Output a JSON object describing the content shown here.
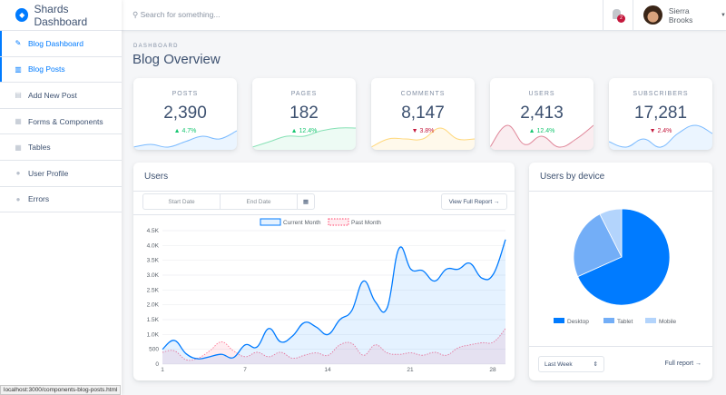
{
  "app": {
    "title": "Shards Dashboard"
  },
  "sidebar": {
    "items": [
      {
        "label": "Blog Dashboard",
        "icon": "pencil-icon",
        "active": true
      },
      {
        "label": "Blog Posts",
        "icon": "columns-icon"
      },
      {
        "label": "Add New Post",
        "icon": "note-add-icon"
      },
      {
        "label": "Forms & Components",
        "icon": "view-module-icon"
      },
      {
        "label": "Tables",
        "icon": "table-icon"
      },
      {
        "label": "User Profile",
        "icon": "person-icon"
      },
      {
        "label": "Errors",
        "icon": "error-icon"
      }
    ]
  },
  "header": {
    "search_placeholder": "Search for something...",
    "notifications": "2",
    "user": "Sierra Brooks"
  },
  "page": {
    "subtitle": "DASHBOARD",
    "title": "Blog Overview"
  },
  "stats": [
    {
      "label": "POSTS",
      "value": "2,390",
      "change": "4.7%",
      "dir": "up",
      "color": "#007bff",
      "spark": [
        1,
        2,
        1,
        3,
        5,
        4,
        7
      ]
    },
    {
      "label": "PAGES",
      "value": "182",
      "change": "12.4%",
      "dir": "up",
      "color": "#17c671",
      "spark": [
        1,
        3,
        5,
        5,
        7,
        8,
        8
      ]
    },
    {
      "label": "COMMENTS",
      "value": "8,147",
      "change": "3.8%",
      "dir": "down",
      "color": "#ffb400",
      "spark": [
        1,
        4,
        4,
        4,
        8,
        4,
        4
      ]
    },
    {
      "label": "USERS",
      "value": "2,413",
      "change": "12.4%",
      "dir": "up",
      "color": "#c4183c",
      "spark": [
        1,
        9,
        2,
        5,
        1,
        4,
        9
      ]
    },
    {
      "label": "SUBSCRIBERS",
      "value": "17,281",
      "change": "2.4%",
      "dir": "down",
      "color": "#007bff",
      "spark": [
        3,
        1,
        4,
        1,
        6,
        9,
        6
      ]
    }
  ],
  "users_card": {
    "title": "Users",
    "start_placeholder": "Start Date",
    "end_placeholder": "End Date",
    "report_button": "View Full Report →"
  },
  "chart_data": {
    "type": "line",
    "legend": [
      "Current Month",
      "Past Month"
    ],
    "legend_position": "top",
    "x_ticks": [
      "1",
      "7",
      "14",
      "21",
      "28"
    ],
    "y_ticks": [
      "0",
      "500",
      "1.0K",
      "1.5K",
      "2.0K",
      "2.5K",
      "3.0K",
      "3.5K",
      "4.0K",
      "4.5K"
    ],
    "ylim": [
      0,
      4500
    ],
    "grid": true,
    "series": [
      {
        "name": "Current Month",
        "color": "#007bff",
        "values": [
          500,
          800,
          350,
          180,
          250,
          330,
          220,
          650,
          580,
          1200,
          750,
          950,
          1400,
          1250,
          1000,
          1500,
          1800,
          2800,
          2100,
          1900,
          3900,
          3200,
          3150,
          2800,
          3200,
          3200,
          3400,
          2900,
          3050,
          4200
        ]
      },
      {
        "name": "Past Month",
        "color": "#ff4169",
        "values": [
          400,
          450,
          150,
          200,
          450,
          750,
          450,
          250,
          400,
          250,
          400,
          200,
          300,
          380,
          300,
          650,
          700,
          300,
          650,
          380,
          330,
          380,
          300,
          400,
          300,
          550,
          650,
          720,
          750,
          1200
        ]
      }
    ]
  },
  "device_card": {
    "title": "Users by device",
    "range": "Last Week",
    "report_link": "Full report →",
    "pie": {
      "type": "pie",
      "labels": [
        "Desktop",
        "Tablet",
        "Mobile"
      ],
      "values": [
        68.3,
        24.2,
        7.5
      ],
      "colors": [
        "#007bff",
        "#73aef7",
        "#b3d4fc"
      ]
    }
  },
  "status_url": "localhost:3000/components-blog-posts.html"
}
